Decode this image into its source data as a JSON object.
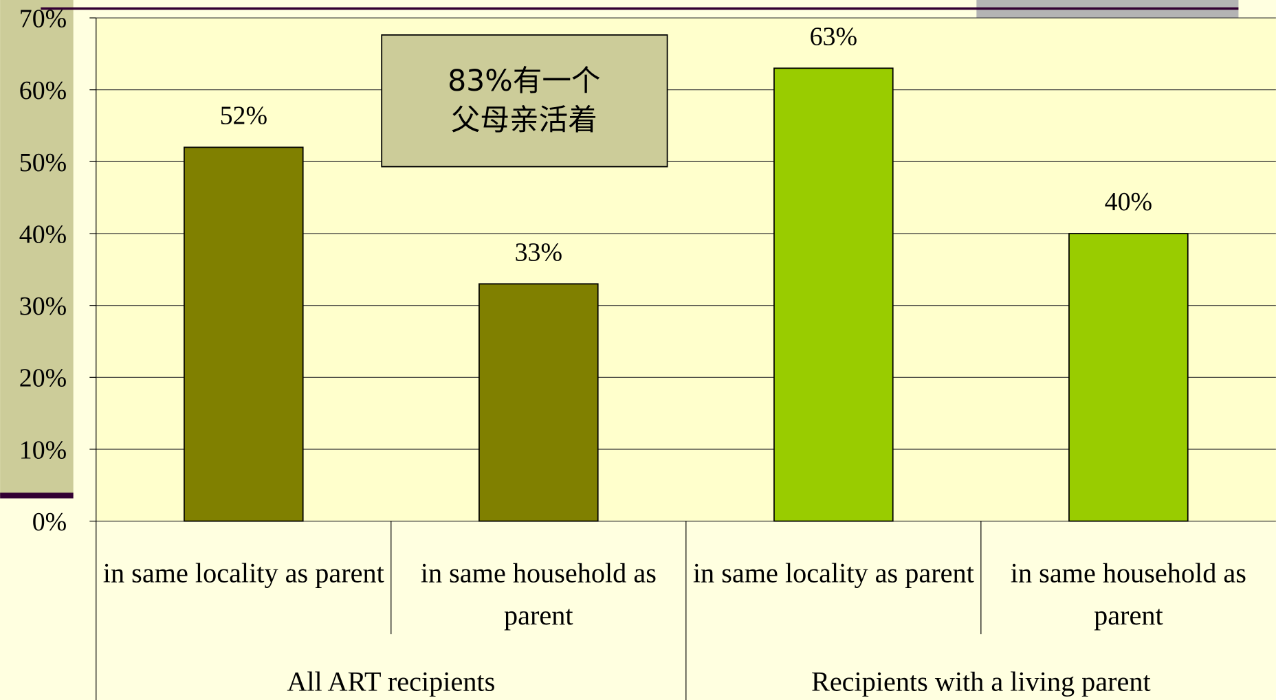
{
  "chart_data": {
    "type": "bar",
    "categories": [
      "in same locality as parent",
      "in same household as parent",
      "in same locality as parent",
      "in same household as parent"
    ],
    "groups": [
      "All ART recipients",
      "Recipients with a living parent"
    ],
    "values": [
      52,
      33,
      63,
      40
    ],
    "value_labels": [
      "52%",
      "33%",
      "63%",
      "40%"
    ],
    "colors": [
      "#808000",
      "#808000",
      "#99cc00",
      "#99cc00"
    ],
    "ylim": [
      0,
      70
    ],
    "yticks": [
      {
        "value": 0,
        "label": "0%"
      },
      {
        "value": 10,
        "label": "10%"
      },
      {
        "value": 20,
        "label": "20%"
      },
      {
        "value": 30,
        "label": "30%"
      },
      {
        "value": 40,
        "label": "40%"
      },
      {
        "value": 50,
        "label": "50%"
      },
      {
        "value": 60,
        "label": "60%"
      },
      {
        "value": 70,
        "label": "70%"
      }
    ],
    "grid": true,
    "annotation": [
      "83%有一个",
      "父母亲活着"
    ]
  }
}
